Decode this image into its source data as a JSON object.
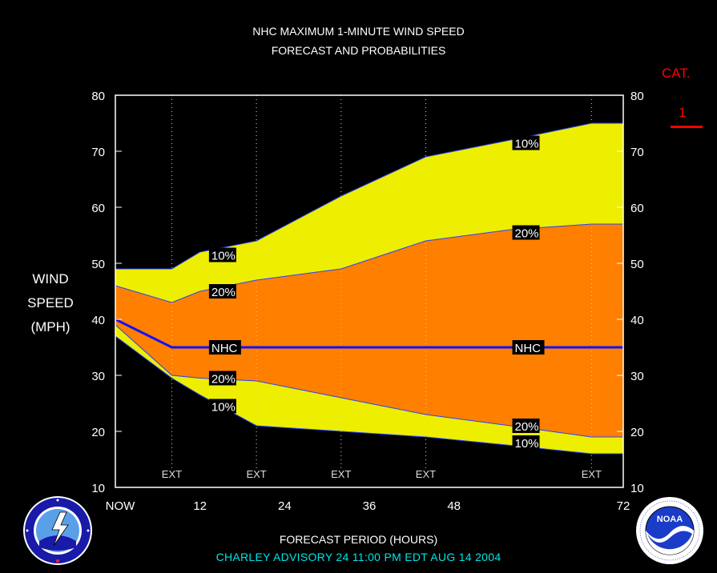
{
  "title_line1": "NHC MAXIMUM 1-MINUTE WIND SPEED",
  "title_line2": "FORECAST AND PROBABILITIES",
  "ylabel": [
    "WIND",
    "SPEED",
    "(MPH)"
  ],
  "xlabel": "FORECAST PERIOD (HOURS)",
  "category": {
    "label": "CAT.",
    "value": "1"
  },
  "footer": "CHARLEY   ADVISORY  24 11:00 PM EDT AUG 14 2004",
  "logos": {
    "left": "nws-logo",
    "right": "noaa-logo"
  },
  "colors": {
    "outer_band": "#eeee00",
    "inner_band": "#ff7f00",
    "nhc_line": "#1111ff",
    "band_edge": "#2244ff",
    "category": "#ff0000",
    "footer": "#00e5e5"
  },
  "chart_data": {
    "type": "area",
    "xlim": [
      0,
      72
    ],
    "ylim": [
      10,
      80
    ],
    "x_tick_labels": [
      {
        "x": 0,
        "label": "NOW"
      },
      {
        "x": 12,
        "label": "12"
      },
      {
        "x": 24,
        "label": "24"
      },
      {
        "x": 36,
        "label": "36"
      },
      {
        "x": 48,
        "label": "48"
      },
      {
        "x": 72,
        "label": "72"
      }
    ],
    "y_ticks": [
      10,
      20,
      30,
      40,
      50,
      60,
      70,
      80
    ],
    "ext_marks": [
      {
        "x": 8,
        "label": "EXT"
      },
      {
        "x": 20,
        "label": "EXT"
      },
      {
        "x": 32,
        "label": "EXT"
      },
      {
        "x": 44,
        "label": "EXT"
      },
      {
        "x": 67.5,
        "label": "EXT"
      }
    ],
    "series": [
      {
        "name": "10%",
        "role": "upper",
        "x": [
          0,
          8,
          12,
          20,
          32,
          44,
          56,
          67.5
        ],
        "y": [
          49,
          49,
          52,
          54,
          62,
          69,
          72,
          75
        ]
      },
      {
        "name": "20%",
        "role": "upper",
        "x": [
          0,
          8,
          12,
          20,
          32,
          44,
          56,
          67.5
        ],
        "y": [
          46,
          43,
          45,
          47,
          49,
          54,
          56,
          57
        ]
      },
      {
        "name": "NHC",
        "role": "forecast",
        "x": [
          0,
          8,
          12,
          20,
          32,
          44,
          56,
          67.5
        ],
        "y": [
          40,
          35,
          35,
          35,
          35,
          35,
          35,
          35
        ]
      },
      {
        "name": "20%",
        "role": "lower",
        "x": [
          0,
          8,
          12,
          20,
          32,
          44,
          56,
          67.5
        ],
        "y": [
          39,
          30,
          29.5,
          29,
          26,
          23,
          21,
          19
        ]
      },
      {
        "name": "10%",
        "role": "lower",
        "x": [
          0,
          8,
          12,
          20,
          32,
          44,
          56,
          67.5
        ],
        "y": [
          37,
          29.5,
          26.5,
          21,
          20,
          19,
          17.5,
          16
        ]
      }
    ],
    "series_labels": [
      {
        "text": "10%",
        "x": 13.5,
        "y": 51.5
      },
      {
        "text": "20%",
        "x": 13.5,
        "y": 45
      },
      {
        "text": "NHC",
        "x": 13.5,
        "y": 35
      },
      {
        "text": "20%",
        "x": 13.5,
        "y": 29.5
      },
      {
        "text": "10%",
        "x": 13.5,
        "y": 24.5
      },
      {
        "text": "10%",
        "x": 56.5,
        "y": 71.5
      },
      {
        "text": "20%",
        "x": 56.5,
        "y": 55.5
      },
      {
        "text": "NHC",
        "x": 56.5,
        "y": 35
      },
      {
        "text": "20%",
        "x": 56.5,
        "y": 21
      },
      {
        "text": "10%",
        "x": 56.5,
        "y": 18
      }
    ]
  }
}
